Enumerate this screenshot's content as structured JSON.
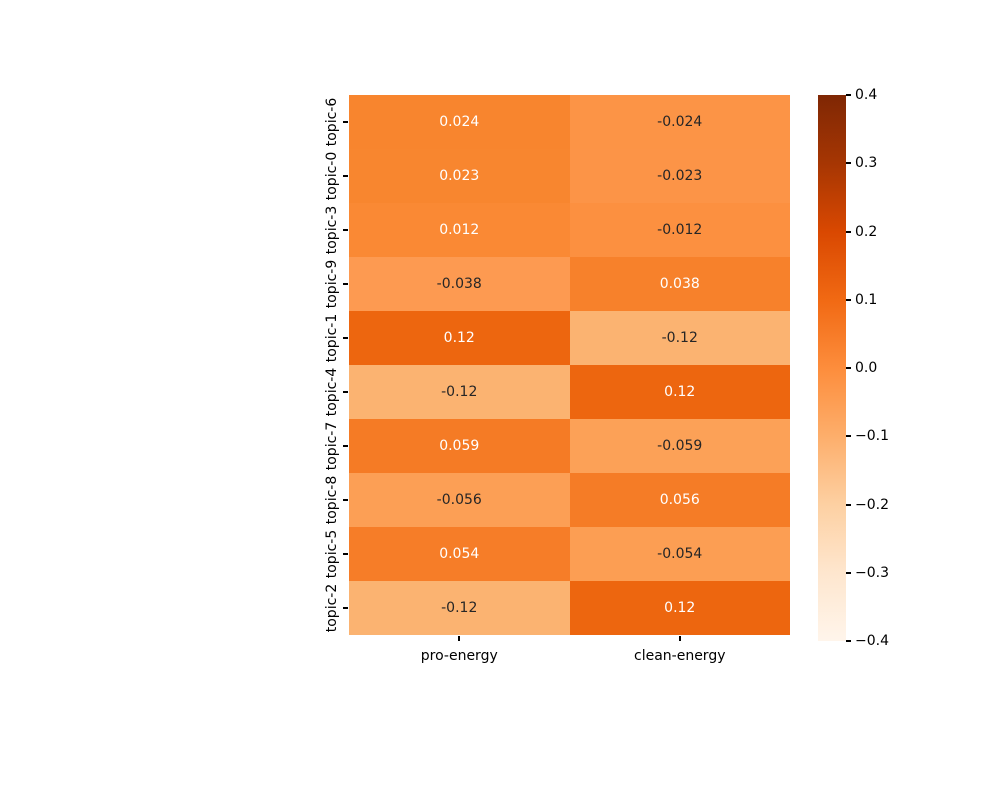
{
  "chart_data": {
    "type": "heatmap",
    "title": "",
    "xlabel": "",
    "ylabel": "",
    "rows": [
      "topic-6",
      "topic-0",
      "topic-3",
      "topic-9",
      "topic-1",
      "topic-4",
      "topic-7",
      "topic-8",
      "topic-5",
      "topic-2"
    ],
    "columns": [
      "pro-energy",
      "clean-energy"
    ],
    "values": [
      [
        0.024,
        -0.024
      ],
      [
        0.023,
        -0.023
      ],
      [
        0.012,
        -0.012
      ],
      [
        -0.038,
        0.038
      ],
      [
        0.12,
        -0.12
      ],
      [
        -0.12,
        0.12
      ],
      [
        0.059,
        -0.059
      ],
      [
        -0.056,
        0.056
      ],
      [
        0.054,
        -0.054
      ],
      [
        -0.12,
        0.12
      ]
    ],
    "cell_labels": [
      [
        "0.024",
        "-0.024"
      ],
      [
        "0.023",
        "-0.023"
      ],
      [
        "0.012",
        "-0.012"
      ],
      [
        "-0.038",
        "0.038"
      ],
      [
        "0.12",
        "-0.12"
      ],
      [
        "-0.12",
        "0.12"
      ],
      [
        "0.059",
        "-0.059"
      ],
      [
        "-0.056",
        "0.056"
      ],
      [
        "0.054",
        "-0.054"
      ],
      [
        "-0.12",
        "0.12"
      ]
    ],
    "cell_colors": [
      [
        "#f8852e",
        "#fc9446"
      ],
      [
        "#f8862f",
        "#fc9447"
      ],
      [
        "#fa8934",
        "#fc9040"
      ],
      [
        "#fd9a51",
        "#f7812b"
      ],
      [
        "#ed660f",
        "#fbb371"
      ],
      [
        "#fbb371",
        "#ed660f"
      ],
      [
        "#f57b25",
        "#fca157"
      ],
      [
        "#fc9f55",
        "#f57c26"
      ],
      [
        "#f67d28",
        "#fc9e53"
      ],
      [
        "#fbb371",
        "#ed660f"
      ]
    ],
    "cell_text_colors": [
      [
        "#ffffff",
        "#262626"
      ],
      [
        "#ffffff",
        "#262626"
      ],
      [
        "#ffffff",
        "#262626"
      ],
      [
        "#262626",
        "#ffffff"
      ],
      [
        "#ffffff",
        "#262626"
      ],
      [
        "#262626",
        "#ffffff"
      ],
      [
        "#ffffff",
        "#262626"
      ],
      [
        "#262626",
        "#ffffff"
      ],
      [
        "#ffffff",
        "#262626"
      ],
      [
        "#262626",
        "#ffffff"
      ]
    ],
    "colormap": "Oranges",
    "vmin": -0.4,
    "vmax": 0.4,
    "grid": false,
    "legend_position": "colorbar-right",
    "colorbar": {
      "ticks": [
        {
          "label": "0.4",
          "value": 0.4
        },
        {
          "label": "0.3",
          "value": 0.3
        },
        {
          "label": "0.2",
          "value": 0.2
        },
        {
          "label": "0.1",
          "value": 0.1
        },
        {
          "label": "0.0",
          "value": 0.0
        },
        {
          "label": "−0.1",
          "value": -0.1
        },
        {
          "label": "−0.2",
          "value": -0.2
        },
        {
          "label": "−0.3",
          "value": -0.3
        },
        {
          "label": "−0.4",
          "value": -0.4
        }
      ],
      "gradient_top_to_bottom": [
        "#7f2704",
        "#a63603",
        "#d94801",
        "#f16913",
        "#fd8d3c",
        "#fdae6b",
        "#fdd0a2",
        "#fee6ce",
        "#fff5eb"
      ]
    }
  }
}
